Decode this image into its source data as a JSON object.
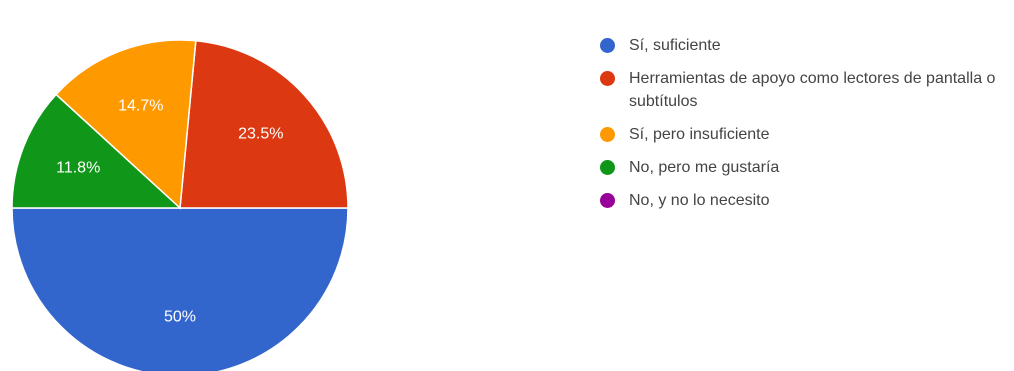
{
  "chart_data": {
    "type": "pie",
    "slices": [
      {
        "label": "Sí, suficiente",
        "value": 50,
        "display": "50%",
        "color": "#3366cc"
      },
      {
        "label": "Herramientas de apoyo como lectores de pantalla o subtítulos",
        "value": 23.5,
        "display": "23.5%",
        "color": "#dc3912"
      },
      {
        "label": "Sí, pero insuficiente",
        "value": 14.7,
        "display": "14.7%",
        "color": "#ff9900"
      },
      {
        "label": "No, pero me gustaría",
        "value": 11.8,
        "display": "11.8%",
        "color": "#109618"
      },
      {
        "label": "No, y no lo necesito",
        "value": 0,
        "display": "",
        "color": "#990099"
      }
    ],
    "legend_position": "right"
  }
}
